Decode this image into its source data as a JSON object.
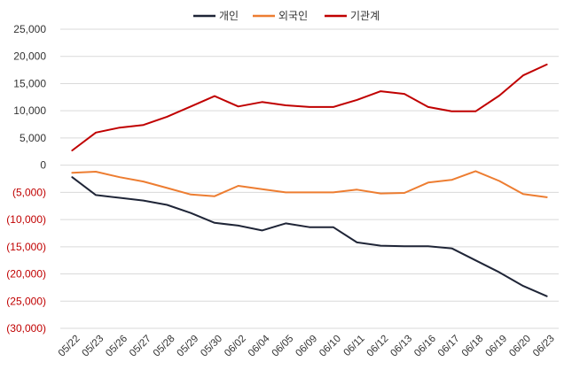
{
  "chart_data": {
    "type": "line",
    "title": "",
    "xlabel": "",
    "ylabel": "",
    "ylim": [
      -30000,
      25000
    ],
    "ytick_step": 5000,
    "yticks": [
      "25,000",
      "20,000",
      "15,000",
      "10,000",
      "5,000",
      "0",
      "(5,000)",
      "(10,000)",
      "(15,000)",
      "(20,000)",
      "(25,000)",
      "(30,000)"
    ],
    "colors": {
      "positive_tick": "#333333",
      "negative_tick": "#c00000",
      "grid": "#d9d9d9"
    },
    "legend_position": "top-center",
    "categories": [
      "05/22",
      "05/23",
      "05/26",
      "05/27",
      "05/28",
      "05/29",
      "05/30",
      "06/02",
      "06/04",
      "06/05",
      "06/09",
      "06/10",
      "06/11",
      "06/12",
      "06/13",
      "06/16",
      "06/17",
      "06/18",
      "06/19",
      "06/20",
      "06/23"
    ],
    "series": [
      {
        "name": "개인",
        "color": "#1f2537",
        "values": [
          -2200,
          -5500,
          -6000,
          -6500,
          -7300,
          -8800,
          -10600,
          -11100,
          -12000,
          -10700,
          -11400,
          -11400,
          -14200,
          -14800,
          -14900,
          -14900,
          -15300,
          -17500,
          -19700,
          -22200,
          -24100
        ]
      },
      {
        "name": "외국인",
        "color": "#ed7d31",
        "values": [
          -1400,
          -1200,
          -2200,
          -3000,
          -4200,
          -5400,
          -5700,
          -3800,
          -4400,
          -5000,
          -5000,
          -5000,
          -4500,
          -5200,
          -5100,
          -3200,
          -2700,
          -1100,
          -2900,
          -5300,
          -5900
        ]
      },
      {
        "name": "기관계",
        "color": "#c00000",
        "values": [
          2700,
          6000,
          6900,
          7400,
          8900,
          10800,
          12700,
          10800,
          11600,
          11000,
          10700,
          10700,
          12000,
          13600,
          13100,
          10700,
          9900,
          9900,
          12800,
          16500,
          18500
        ]
      }
    ]
  }
}
